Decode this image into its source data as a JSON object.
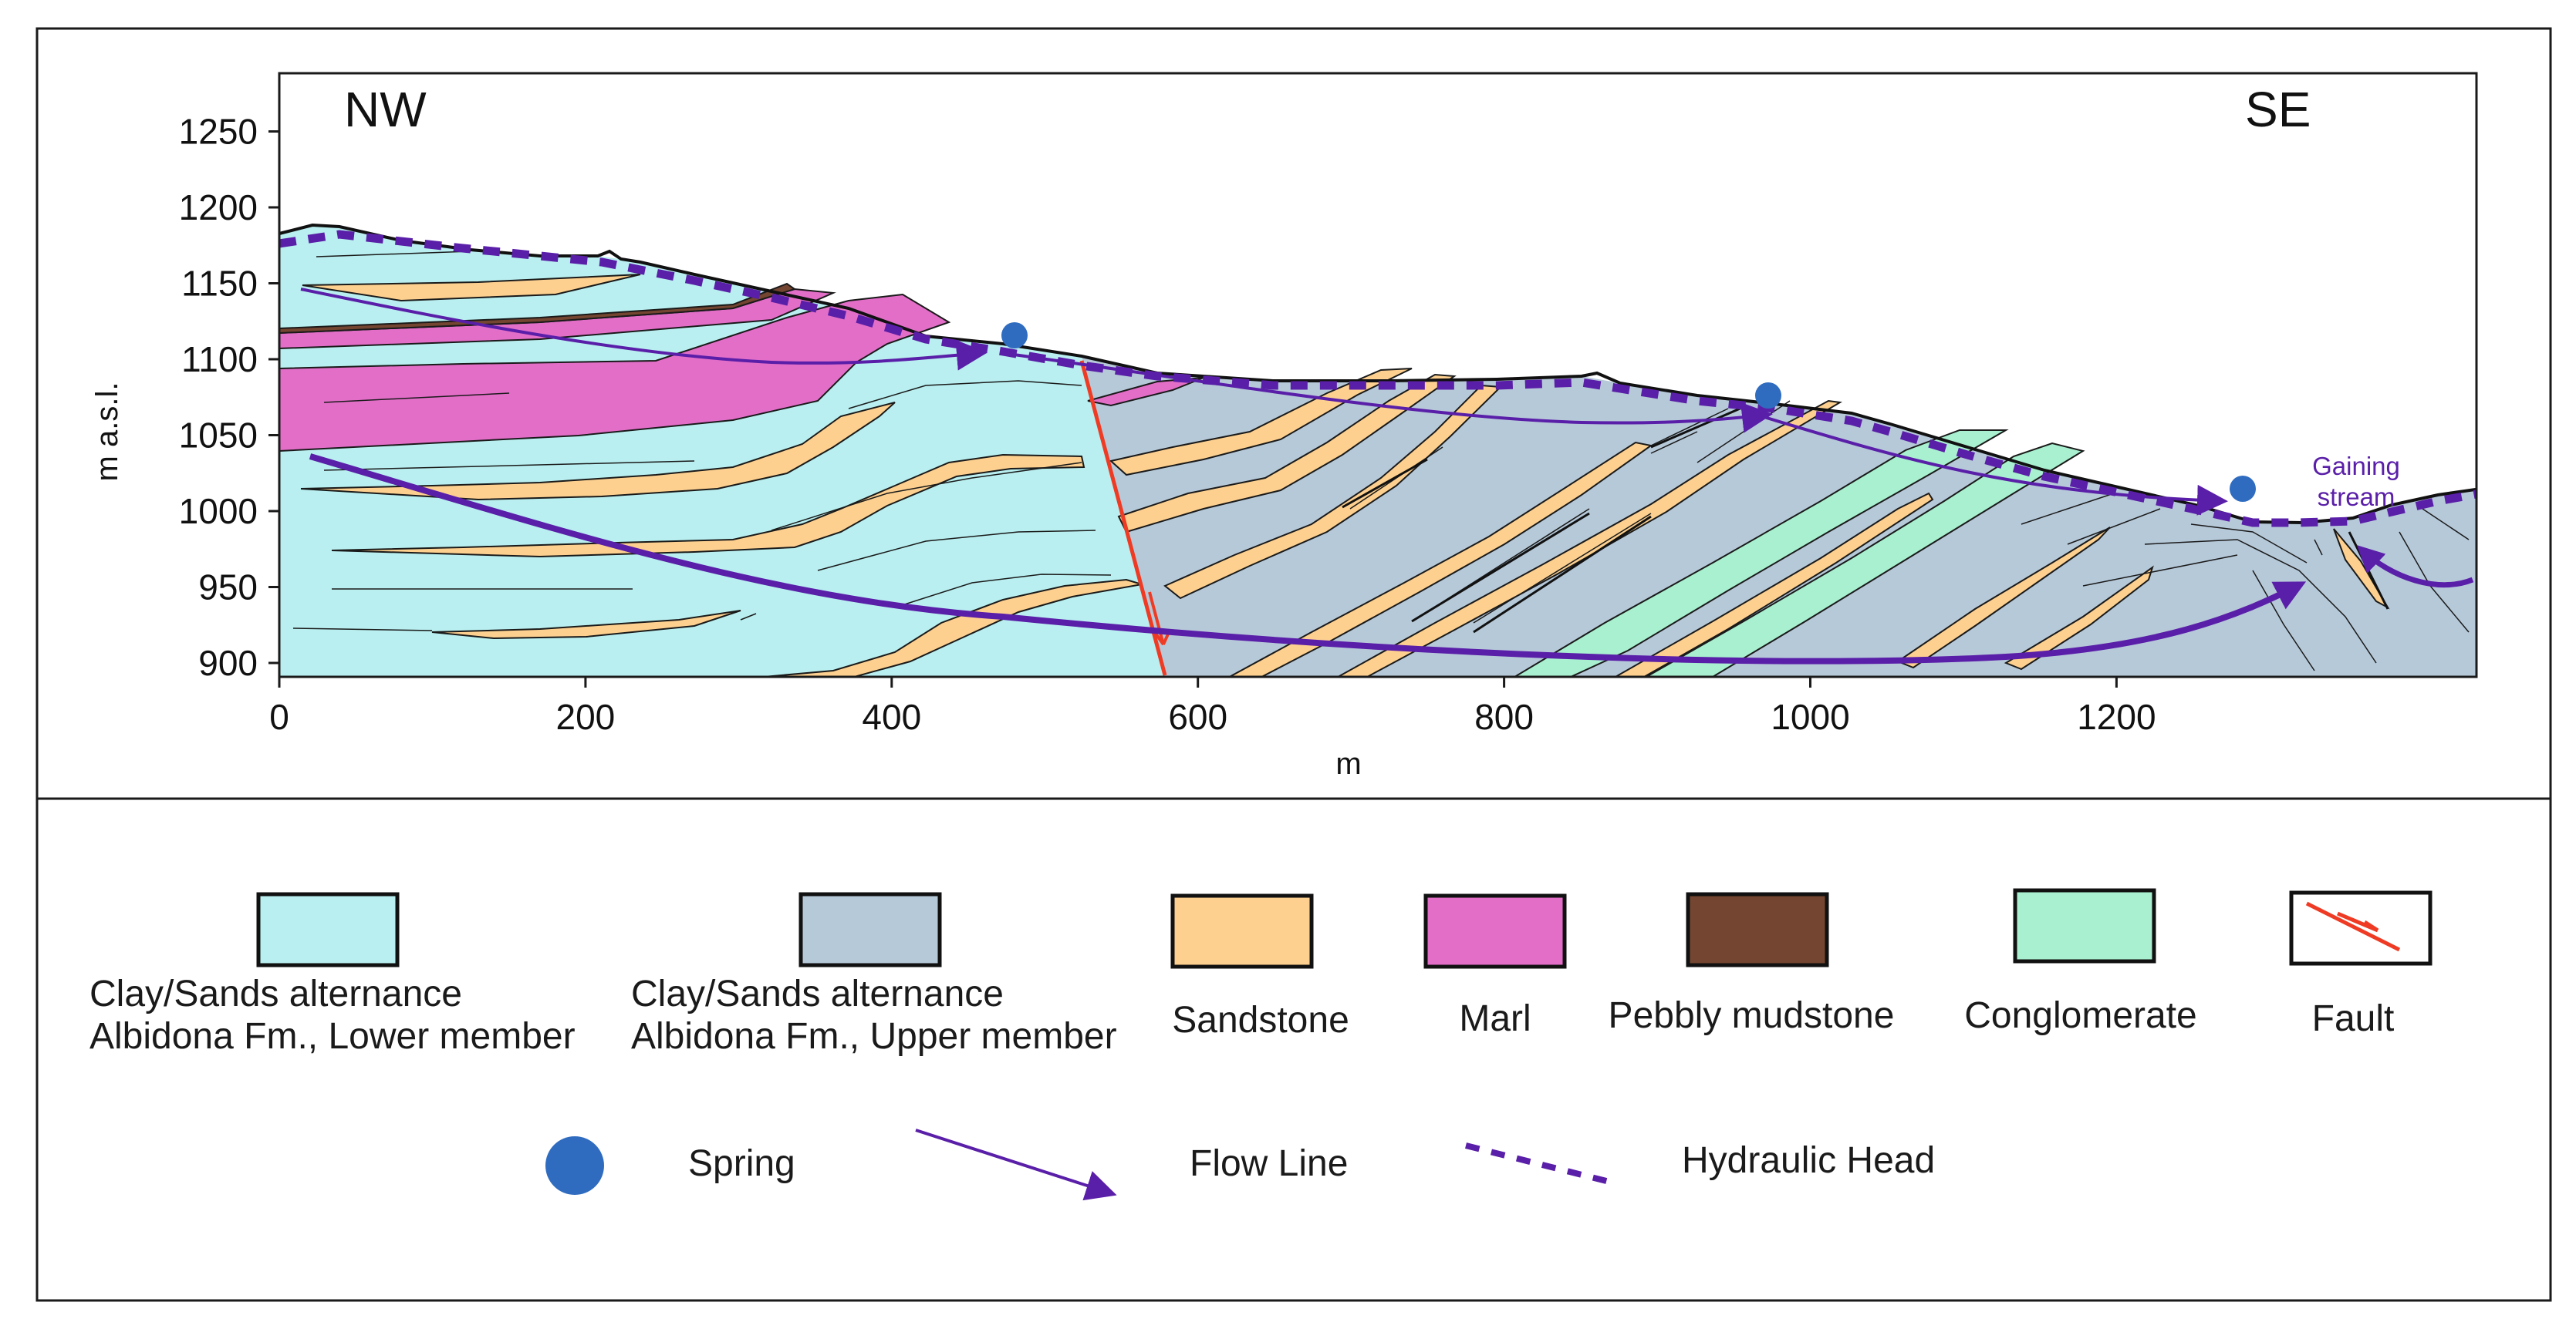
{
  "section": {
    "orientation_left": "NW",
    "orientation_right": "SE",
    "annotation": [
      "Gaining",
      "stream"
    ],
    "x_axis_label": "m",
    "y_axis_label": "m a.s.l.",
    "x_ticks": [
      "0",
      "200",
      "400",
      "600",
      "800",
      "1000",
      "1200"
    ],
    "y_ticks": [
      "1250",
      "1200",
      "1150",
      "1100",
      "1050",
      "1000",
      "950",
      "900"
    ],
    "x_range": [
      0,
      1440
    ],
    "y_range": [
      892,
      1290
    ]
  },
  "legend": {
    "units": [
      {
        "name": "lower-member",
        "lines": [
          "Clay/Sands alternance",
          "Albidona Fm., Lower member"
        ],
        "color": "#b9eff0"
      },
      {
        "name": "upper-member",
        "lines": [
          "Clay/Sands alternance",
          "Albidona Fm., Upper member"
        ],
        "color": "#b6c9d9"
      },
      {
        "name": "sandstone",
        "lines": [
          "Sandstone"
        ],
        "color": "#fdd08f"
      },
      {
        "name": "marl",
        "lines": [
          "Marl"
        ],
        "color": "#e36ec8"
      },
      {
        "name": "pebbly-mudstone",
        "lines": [
          "Pebbly mudstone"
        ],
        "color": "#744530"
      },
      {
        "name": "conglomerate",
        "lines": [
          "Conglomerate"
        ],
        "color": "#a8f0cf"
      },
      {
        "name": "fault",
        "lines": [
          "Fault"
        ],
        "color": "#ef3b24"
      }
    ],
    "symbols": {
      "spring": "Spring",
      "flow_line": "Flow Line",
      "hydraulic_head": "Hydraulic Head"
    }
  },
  "colors": {
    "flow": "#5a1fa8",
    "spring": "#2f6cc0",
    "fault": "#ef3b24",
    "lower": "#b9eff0",
    "upper": "#b6c9d9",
    "sandstone": "#fdd08f",
    "marl": "#e36ec8",
    "pebbly": "#744530",
    "conglomerate": "#a8f0cf"
  }
}
